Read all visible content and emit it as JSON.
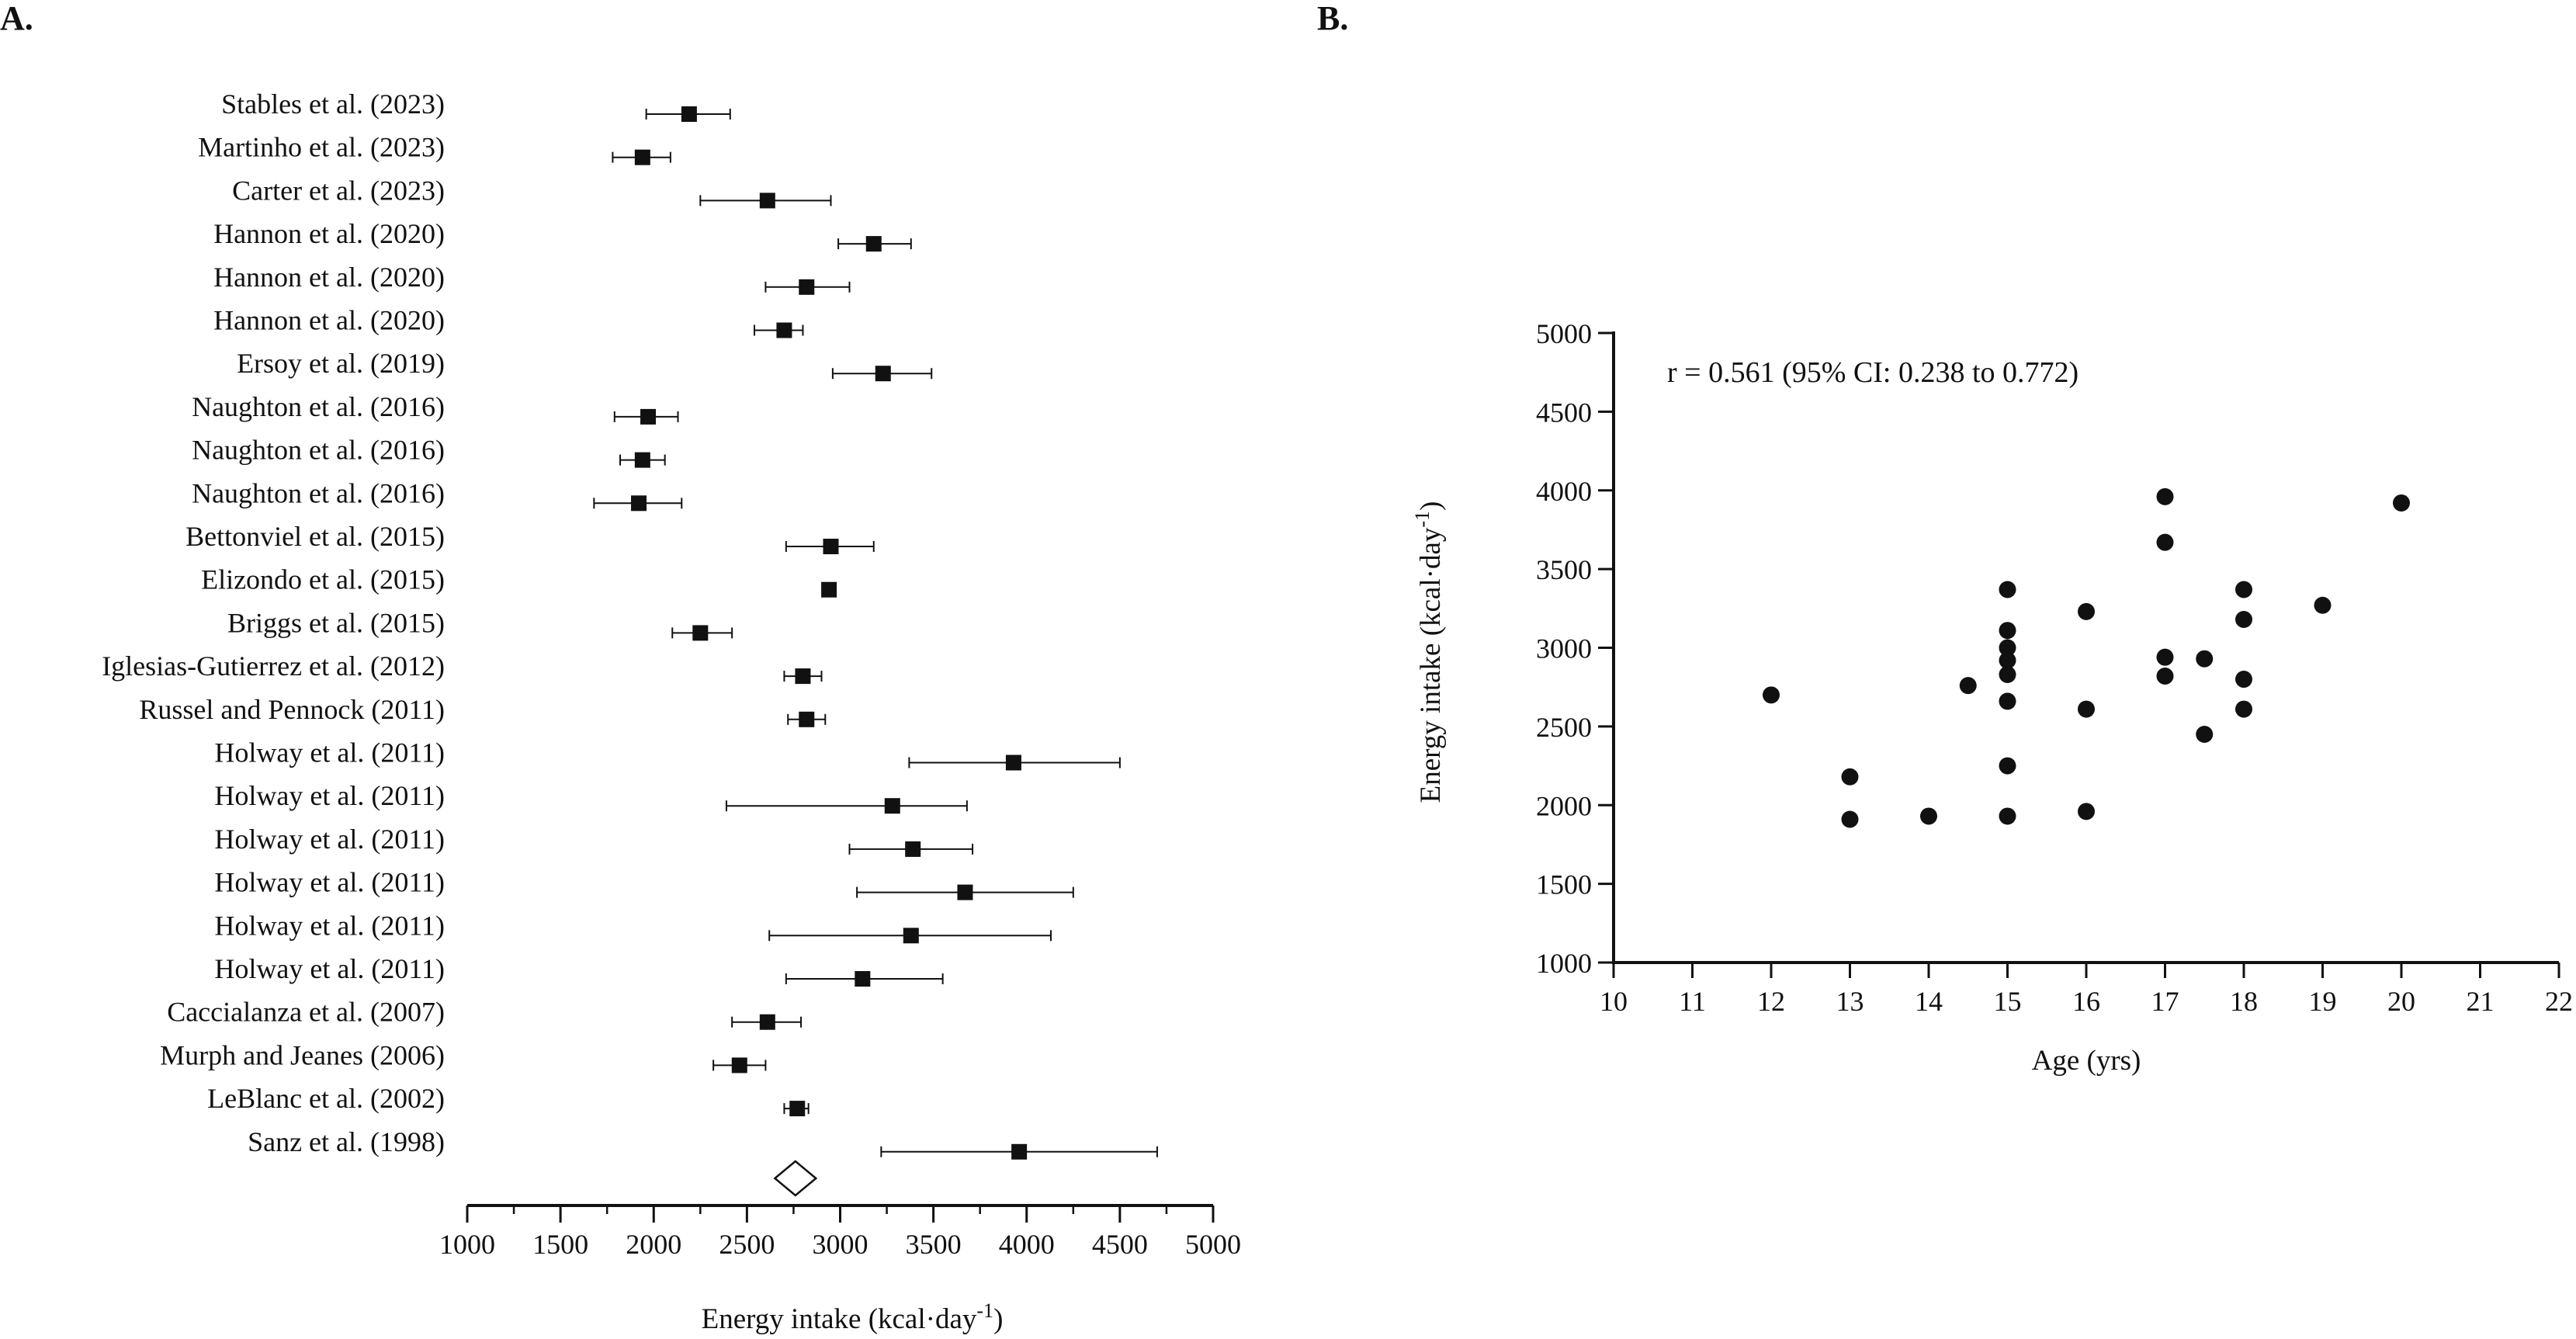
{
  "figure": {
    "panel_a_label": "A.",
    "panel_b_label": "B."
  },
  "chart_data": [
    {
      "type": "forest",
      "panel": "A.",
      "xlabel": "Energy intake (kcal·day⁻¹)",
      "xlim": [
        1000,
        5000
      ],
      "xticks": [
        1000,
        1500,
        2000,
        2500,
        3000,
        3500,
        4000,
        4500,
        5000
      ],
      "studies": [
        {
          "label": "Stables et al. (2023)",
          "mean": 2190,
          "lo": 1960,
          "hi": 2410
        },
        {
          "label": "Martinho et al. (2023)",
          "mean": 1940,
          "lo": 1780,
          "hi": 2090
        },
        {
          "label": "Carter et al. (2023)",
          "mean": 2610,
          "lo": 2250,
          "hi": 2950
        },
        {
          "label": "Hannon et al. (2020)",
          "mean": 3180,
          "lo": 2990,
          "hi": 3380
        },
        {
          "label": "Hannon et al. (2020)",
          "mean": 2820,
          "lo": 2600,
          "hi": 3050
        },
        {
          "label": "Hannon et al. (2020)",
          "mean": 2700,
          "lo": 2540,
          "hi": 2800
        },
        {
          "label": "Ersoy et al. (2019)",
          "mean": 3230,
          "lo": 2960,
          "hi": 3490
        },
        {
          "label": "Naughton et al. (2016)",
          "mean": 1970,
          "lo": 1790,
          "hi": 2130
        },
        {
          "label": "Naughton et al. (2016)",
          "mean": 1940,
          "lo": 1820,
          "hi": 2060
        },
        {
          "label": "Naughton et al. (2016)",
          "mean": 1920,
          "lo": 1680,
          "hi": 2150
        },
        {
          "label": "Bettonviel et al. (2015)",
          "mean": 2950,
          "lo": 2710,
          "hi": 3180
        },
        {
          "label": "Elizondo et al. (2015)",
          "mean": 2940,
          "lo": 2940,
          "hi": 2940
        },
        {
          "label": "Briggs et al. (2015)",
          "mean": 2250,
          "lo": 2100,
          "hi": 2420
        },
        {
          "label": "Iglesias-Gutierrez et al. (2012)",
          "mean": 2800,
          "lo": 2700,
          "hi": 2900
        },
        {
          "label": "Russel and Pennock (2011)",
          "mean": 2820,
          "lo": 2720,
          "hi": 2920
        },
        {
          "label": "Holway et al. (2011)",
          "mean": 3930,
          "lo": 3370,
          "hi": 4500
        },
        {
          "label": "Holway et al. (2011)",
          "mean": 3280,
          "lo": 2390,
          "hi": 3680
        },
        {
          "label": "Holway et al. (2011)",
          "mean": 3390,
          "lo": 3050,
          "hi": 3710
        },
        {
          "label": "Holway et al. (2011)",
          "mean": 3670,
          "lo": 3090,
          "hi": 4250
        },
        {
          "label": "Holway et al. (2011)",
          "mean": 3380,
          "lo": 2620,
          "hi": 4130
        },
        {
          "label": "Holway et al. (2011)",
          "mean": 3120,
          "lo": 2710,
          "hi": 3550
        },
        {
          "label": "Caccialanza et al. (2007)",
          "mean": 2610,
          "lo": 2420,
          "hi": 2790
        },
        {
          "label": "Murph and Jeanes (2006)",
          "mean": 2460,
          "lo": 2320,
          "hi": 2600
        },
        {
          "label": "LeBlanc et al. (2002)",
          "mean": 2770,
          "lo": 2700,
          "hi": 2830
        },
        {
          "label": "Sanz et al. (1998)",
          "mean": 3960,
          "lo": 3220,
          "hi": 4700
        }
      ],
      "pooled": {
        "mean": 2760,
        "lo": 2650,
        "hi": 2870
      }
    },
    {
      "type": "scatter",
      "panel": "B.",
      "xlabel": "Age (yrs)",
      "ylabel": "Energy intake (kcal·day⁻¹)",
      "xlim": [
        10,
        22
      ],
      "ylim": [
        1000,
        5000
      ],
      "xticks": [
        10,
        11,
        12,
        13,
        14,
        15,
        16,
        17,
        18,
        19,
        20,
        21,
        22
      ],
      "yticks": [
        1000,
        1500,
        2000,
        2500,
        3000,
        3500,
        4000,
        4500,
        5000
      ],
      "annotation": "r  = 0.561 (95% CI: 0.238 to 0.772)",
      "points": [
        {
          "x": 12,
          "y": 2700
        },
        {
          "x": 13,
          "y": 2180
        },
        {
          "x": 13,
          "y": 1910
        },
        {
          "x": 14,
          "y": 1930
        },
        {
          "x": 14.5,
          "y": 2760
        },
        {
          "x": 15,
          "y": 3370
        },
        {
          "x": 15,
          "y": 3110
        },
        {
          "x": 15,
          "y": 3000
        },
        {
          "x": 15,
          "y": 2920
        },
        {
          "x": 15,
          "y": 2830
        },
        {
          "x": 15,
          "y": 2660
        },
        {
          "x": 15,
          "y": 2250
        },
        {
          "x": 15,
          "y": 1930
        },
        {
          "x": 16,
          "y": 3230
        },
        {
          "x": 16,
          "y": 2610
        },
        {
          "x": 16,
          "y": 1960
        },
        {
          "x": 17,
          "y": 3960
        },
        {
          "x": 17,
          "y": 3670
        },
        {
          "x": 17,
          "y": 2940
        },
        {
          "x": 17,
          "y": 2820
        },
        {
          "x": 17.5,
          "y": 2930
        },
        {
          "x": 17.5,
          "y": 2450
        },
        {
          "x": 18,
          "y": 3370
        },
        {
          "x": 18,
          "y": 3180
        },
        {
          "x": 18,
          "y": 2800
        },
        {
          "x": 18,
          "y": 2610
        },
        {
          "x": 19,
          "y": 3270
        },
        {
          "x": 20,
          "y": 3920
        }
      ]
    }
  ]
}
